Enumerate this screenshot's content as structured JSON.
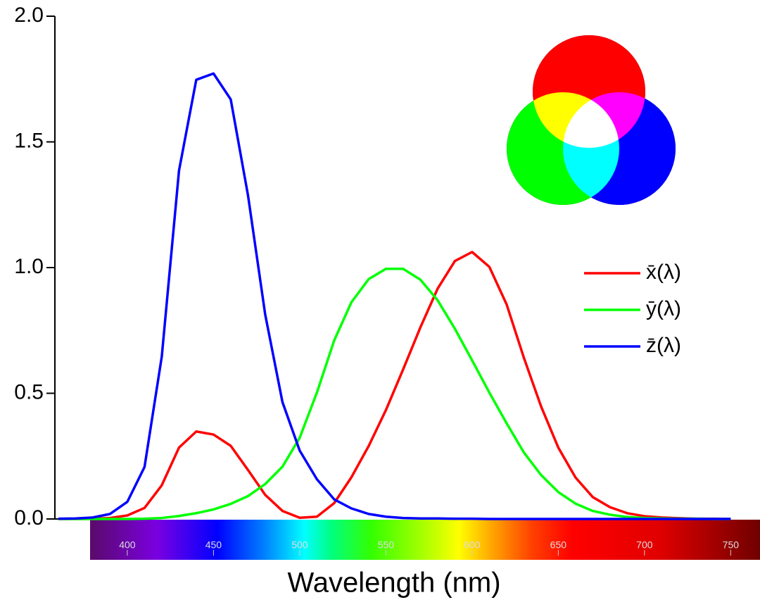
{
  "chart_data": {
    "type": "line",
    "x_label": "Wavelength (nm)",
    "x": [
      360,
      370,
      380,
      390,
      400,
      410,
      420,
      430,
      440,
      450,
      460,
      470,
      480,
      490,
      500,
      510,
      520,
      530,
      540,
      550,
      560,
      570,
      580,
      590,
      600,
      610,
      620,
      630,
      640,
      650,
      660,
      670,
      680,
      690,
      700,
      710,
      720,
      730,
      740,
      750
    ],
    "series": [
      {
        "name": "x̄(λ)",
        "color": "#ff0000",
        "values": [
          0.0,
          0.0,
          0.001,
          0.004,
          0.014,
          0.044,
          0.134,
          0.284,
          0.348,
          0.336,
          0.291,
          0.195,
          0.096,
          0.032,
          0.005,
          0.009,
          0.063,
          0.166,
          0.29,
          0.433,
          0.595,
          0.762,
          0.916,
          1.026,
          1.062,
          1.003,
          0.854,
          0.642,
          0.448,
          0.284,
          0.165,
          0.087,
          0.047,
          0.023,
          0.011,
          0.006,
          0.003,
          0.001,
          0.001,
          0.0
        ]
      },
      {
        "name": "ȳ(λ)",
        "color": "#00ff00",
        "values": [
          0.0,
          0.0,
          0.0,
          0.0,
          0.0,
          0.001,
          0.004,
          0.012,
          0.023,
          0.038,
          0.06,
          0.091,
          0.139,
          0.208,
          0.323,
          0.503,
          0.71,
          0.862,
          0.954,
          0.995,
          0.995,
          0.952,
          0.87,
          0.757,
          0.631,
          0.503,
          0.381,
          0.265,
          0.175,
          0.107,
          0.061,
          0.032,
          0.017,
          0.008,
          0.004,
          0.002,
          0.001,
          0.001,
          0.0,
          0.0
        ]
      },
      {
        "name": "z̄(λ)",
        "color": "#0000ff",
        "values": [
          0.001,
          0.002,
          0.006,
          0.02,
          0.068,
          0.207,
          0.646,
          1.386,
          1.747,
          1.772,
          1.669,
          1.288,
          0.813,
          0.465,
          0.272,
          0.158,
          0.078,
          0.042,
          0.02,
          0.009,
          0.004,
          0.002,
          0.002,
          0.001,
          0.001,
          0.0,
          0.0,
          0.0,
          0.0,
          0.0,
          0.0,
          0.0,
          0.0,
          0.0,
          0.0,
          0.0,
          0.0,
          0.0,
          0.0,
          0.0
        ]
      }
    ],
    "xlim": [
      358,
      767
    ],
    "xticks": [
      400,
      450,
      500,
      550,
      600,
      650,
      700,
      750
    ],
    "ylim": [
      0,
      2
    ],
    "yticks": [
      {
        "value": 0,
        "label": "0.0"
      },
      0.5,
      {
        "value": 1,
        "label": "1.0"
      },
      1.5,
      {
        "value": 2,
        "label": "2.0"
      }
    ]
  }
}
